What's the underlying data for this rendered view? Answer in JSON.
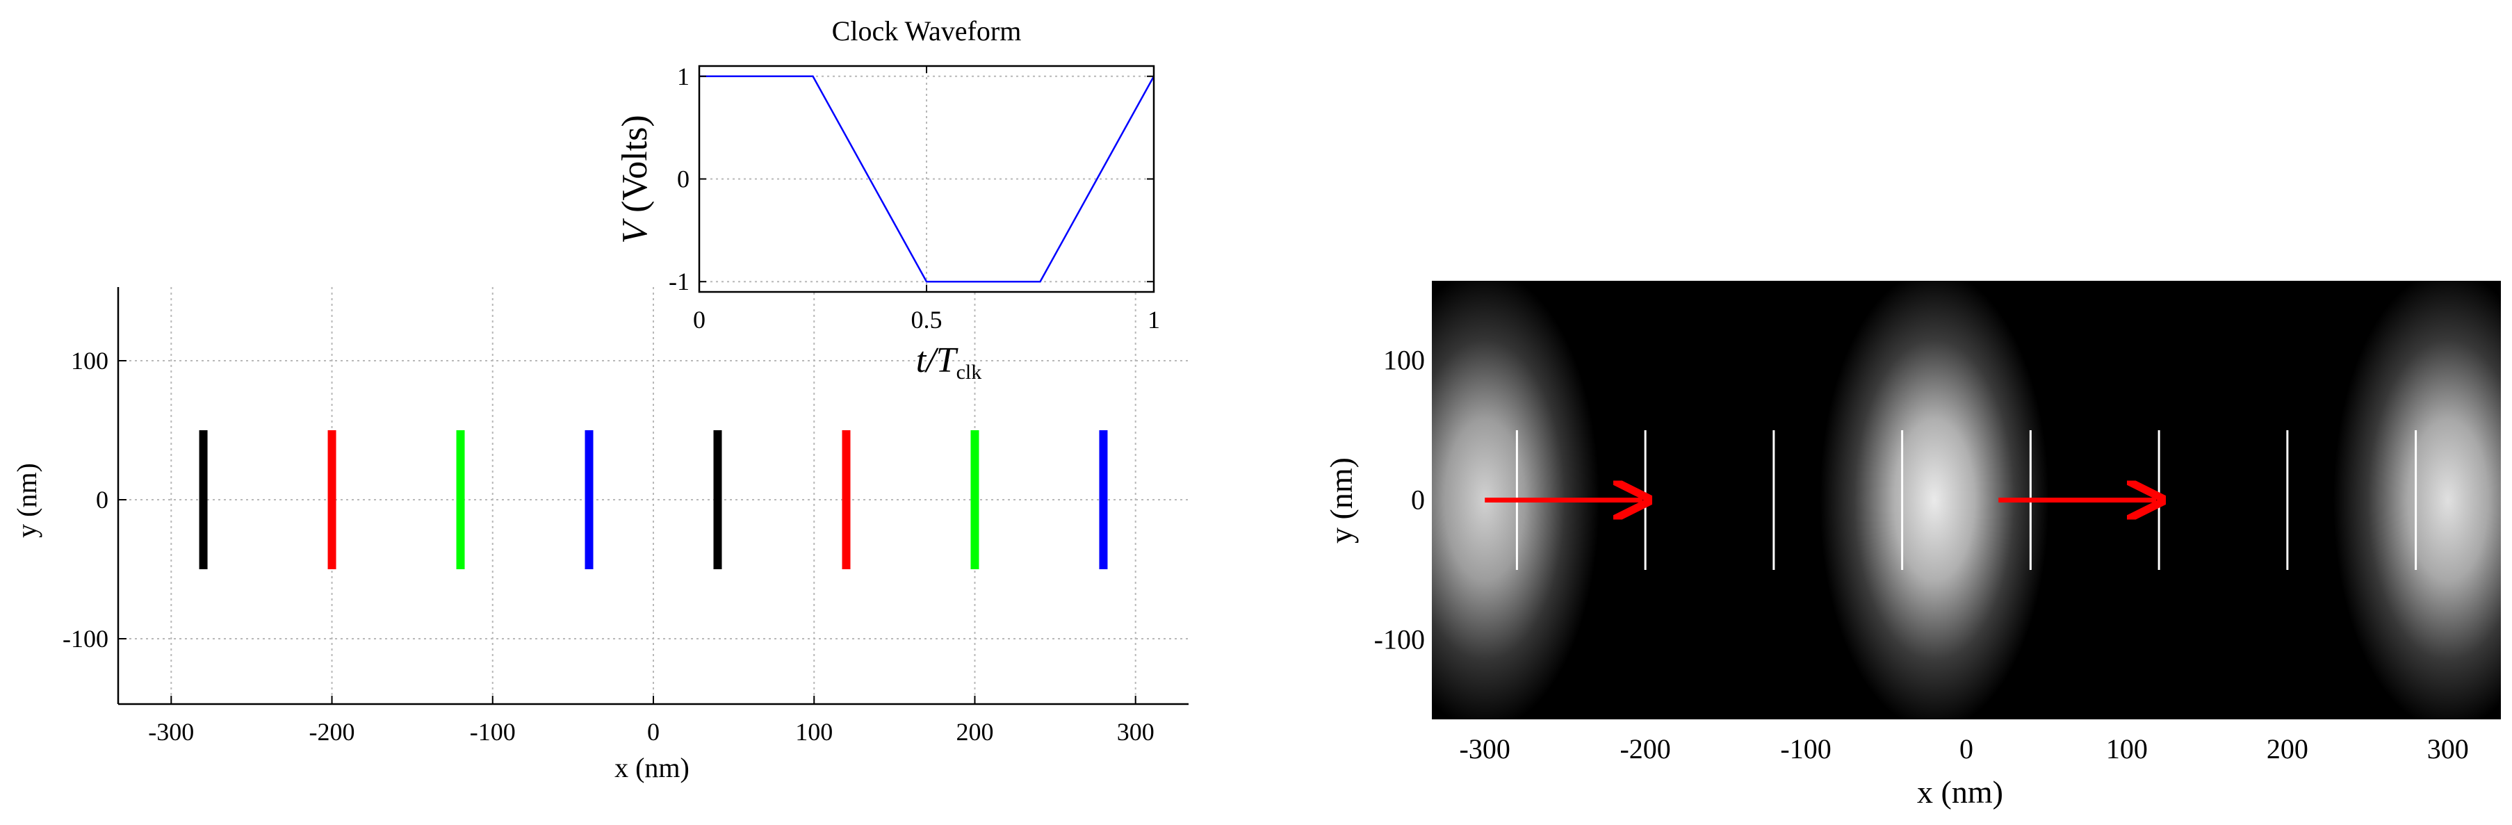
{
  "chart_data": [
    {
      "id": "electrode-layout",
      "type": "scatter",
      "title": "",
      "xlabel": "x (nm)",
      "ylabel": "y (nm)",
      "xlim": [
        -333,
        333
      ],
      "ylim": [
        -147,
        153
      ],
      "xticks": [
        -300,
        -200,
        -100,
        0,
        100,
        200,
        300
      ],
      "xtick_labels": [
        "-300",
        "-200",
        "-100",
        "0",
        "100",
        "200",
        "300"
      ],
      "yticks": [
        -100,
        0,
        100
      ],
      "ytick_labels": [
        "-100",
        "0",
        "100"
      ],
      "grid": true,
      "legend": "none",
      "segments": [
        {
          "x": -280,
          "y0": -50,
          "y1": 50,
          "color": "#000000"
        },
        {
          "x": -200,
          "y0": -50,
          "y1": 50,
          "color": "#ff0000"
        },
        {
          "x": -120,
          "y0": -50,
          "y1": 50,
          "color": "#00ff00"
        },
        {
          "x": -40,
          "y0": -50,
          "y1": 50,
          "color": "#0000ff"
        },
        {
          "x": 40,
          "y0": -50,
          "y1": 50,
          "color": "#000000"
        },
        {
          "x": 120,
          "y0": -50,
          "y1": 50,
          "color": "#ff0000"
        },
        {
          "x": 200,
          "y0": -50,
          "y1": 50,
          "color": "#00ff00"
        },
        {
          "x": 280,
          "y0": -50,
          "y1": 50,
          "color": "#0000ff"
        }
      ]
    },
    {
      "id": "clock-waveform",
      "type": "line",
      "title": "Clock Waveform",
      "xlabel": "t/T",
      "xlabel_subscript": "clk",
      "ylabel_italic": "V",
      "ylabel_rest": " (Volts)",
      "xlim": [
        0,
        1
      ],
      "ylim": [
        -1.1,
        1.1
      ],
      "xticks": [
        0,
        0.5,
        1
      ],
      "xtick_labels": [
        "0",
        "0.5",
        "1"
      ],
      "yticks": [
        -1,
        0,
        1
      ],
      "ytick_labels": [
        "-1",
        "0",
        "1"
      ],
      "grid": true,
      "series": [
        {
          "color": "#0000ff",
          "x": [
            0,
            0.25,
            0.5,
            0.75,
            1
          ],
          "y": [
            1,
            1,
            -1,
            -1,
            1
          ]
        }
      ]
    },
    {
      "id": "charge-density",
      "type": "heatmap",
      "title": "",
      "xlabel": "x (nm)",
      "ylabel": "y (nm)",
      "xlim": [
        -333,
        333
      ],
      "ylim": [
        -157,
        157
      ],
      "xticks": [
        -300,
        -200,
        -100,
        0,
        100,
        200,
        300
      ],
      "xtick_labels": [
        "-300",
        "-200",
        "-100",
        "0",
        "100",
        "200",
        "300"
      ],
      "yticks": [
        -100,
        0,
        100
      ],
      "ytick_labels": [
        "-100",
        "0",
        "100"
      ],
      "colormap": "gray",
      "blobs": [
        {
          "cx": -300,
          "cy": 0,
          "intensity": 0.82
        },
        {
          "cx": -20,
          "cy": 0,
          "intensity": 0.92
        },
        {
          "cx": 300,
          "cy": 0,
          "intensity": 0.88
        }
      ],
      "electrode_lines": {
        "x": [
          -280,
          -200,
          -120,
          -40,
          40,
          120,
          200,
          280
        ],
        "y0": -50,
        "y1": 50,
        "color": "#ffffff"
      },
      "arrows": [
        {
          "x0": -300,
          "x1": -200,
          "y": 0,
          "color": "#ff0000"
        },
        {
          "x0": 20,
          "x1": 120,
          "y": 0,
          "color": "#ff0000"
        }
      ]
    }
  ]
}
